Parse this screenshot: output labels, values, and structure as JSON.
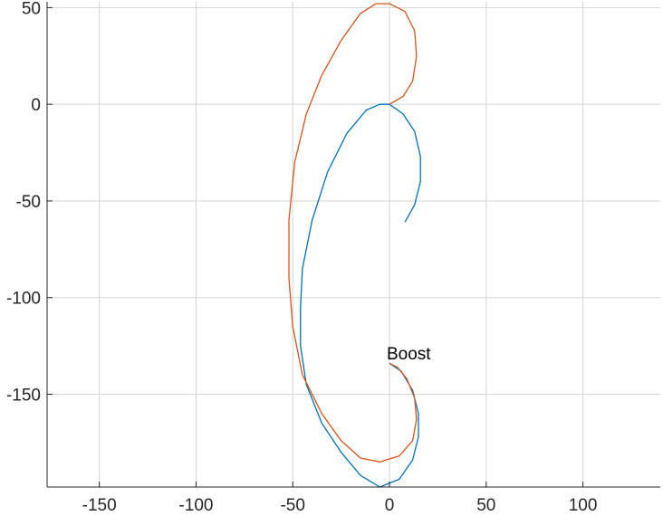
{
  "chart_data": {
    "type": "line",
    "title": "",
    "xlabel": "",
    "ylabel": "",
    "xlim": [
      -177,
      140
    ],
    "ylim": [
      -198,
      53
    ],
    "grid": true,
    "x_ticks": [
      -150,
      -100,
      -50,
      0,
      50,
      100
    ],
    "y_ticks": [
      50,
      0,
      -50,
      -100,
      -150
    ],
    "annotations": [
      {
        "text": "Boost",
        "x": 0,
        "y": -133
      }
    ],
    "series": [
      {
        "color": "#0072BD",
        "points": [
          [
            8,
            -61
          ],
          [
            13,
            -52
          ],
          [
            16,
            -40
          ],
          [
            16,
            -27
          ],
          [
            13,
            -14
          ],
          [
            7,
            -5
          ],
          [
            0,
            0
          ],
          [
            -5,
            0
          ],
          [
            -12,
            -3
          ],
          [
            -22,
            -15
          ],
          [
            -32,
            -35
          ],
          [
            -40,
            -60
          ],
          [
            -45,
            -85
          ],
          [
            -46,
            -105
          ],
          [
            -46,
            -125
          ],
          [
            -43,
            -145
          ],
          [
            -35,
            -165
          ],
          [
            -25,
            -180
          ],
          [
            -15,
            -192
          ],
          [
            -5,
            -198
          ],
          [
            5,
            -194
          ],
          [
            12,
            -184
          ],
          [
            15,
            -172
          ],
          [
            15,
            -160
          ],
          [
            12,
            -148
          ],
          [
            6,
            -138
          ],
          [
            0,
            -134
          ]
        ]
      },
      {
        "color": "#D95319",
        "points": [
          [
            0,
            0
          ],
          [
            7,
            4
          ],
          [
            12,
            12
          ],
          [
            14,
            25
          ],
          [
            13,
            38
          ],
          [
            8,
            48
          ],
          [
            0,
            52
          ],
          [
            -7,
            52
          ],
          [
            -15,
            47
          ],
          [
            -25,
            33
          ],
          [
            -35,
            15
          ],
          [
            -43,
            -5
          ],
          [
            -49,
            -30
          ],
          [
            -52,
            -60
          ],
          [
            -52,
            -90
          ],
          [
            -50,
            -115
          ],
          [
            -45,
            -140
          ],
          [
            -35,
            -160
          ],
          [
            -25,
            -174
          ],
          [
            -15,
            -183
          ],
          [
            -5,
            -185
          ],
          [
            5,
            -182
          ],
          [
            12,
            -174
          ],
          [
            14,
            -163
          ],
          [
            13,
            -152
          ],
          [
            9,
            -142
          ],
          [
            4,
            -136
          ],
          [
            0,
            -134
          ]
        ]
      }
    ]
  }
}
